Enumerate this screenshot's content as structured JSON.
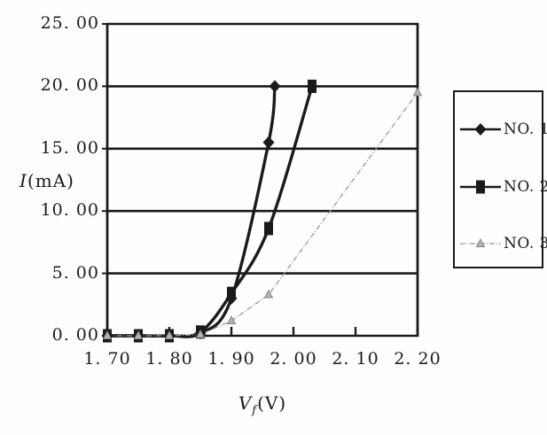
{
  "figure": {
    "background": "#fefefe",
    "ink_color": "#1a1a1a",
    "muted_color": "#999999"
  },
  "chart_data": {
    "type": "line",
    "xlabel": {
      "prefix": "V",
      "sub": "f",
      "suffix": "(V)"
    },
    "ylabel": {
      "prefix": "I",
      "suffix": "(mA)"
    },
    "xlim": [
      1.7,
      2.2
    ],
    "ylim": [
      0,
      25
    ],
    "x_tick_values": [
      1.7,
      1.8,
      1.9,
      2.0,
      2.1,
      2.2
    ],
    "x_tick_labels": [
      "1. 70",
      "1. 80",
      "1. 90",
      "2. 00",
      "2. 10",
      "2. 20"
    ],
    "y_tick_values": [
      25,
      20,
      15,
      10,
      5,
      0
    ],
    "y_tick_labels": [
      "25. 00",
      "20. 00",
      "15. 00",
      "10. 00",
      "5. 00",
      "0. 00"
    ],
    "grid": "horizontal",
    "legend_position": "right",
    "series": [
      {
        "name": "NO. 1",
        "marker": "diamond",
        "line": "solid",
        "color": "#1a1a1a",
        "points": [
          [
            1.7,
            0
          ],
          [
            1.75,
            0
          ],
          [
            1.8,
            0
          ],
          [
            1.85,
            0.2
          ],
          [
            1.9,
            3.0
          ],
          [
            1.96,
            15.5
          ],
          [
            1.97,
            20.0
          ]
        ]
      },
      {
        "name": "NO. 2",
        "marker": "square",
        "line": "solid",
        "color": "#1a1a1a",
        "points": [
          [
            1.7,
            0
          ],
          [
            1.75,
            0
          ],
          [
            1.8,
            0
          ],
          [
            1.85,
            0.3
          ],
          [
            1.9,
            3.4
          ],
          [
            1.96,
            8.6
          ],
          [
            2.03,
            20.0
          ]
        ]
      },
      {
        "name": "NO. 3",
        "marker": "triangle",
        "line": "dash-dot",
        "color": "#999999",
        "points": [
          [
            1.7,
            0
          ],
          [
            1.75,
            0
          ],
          [
            1.8,
            0
          ],
          [
            1.85,
            0.1
          ],
          [
            1.9,
            1.2
          ],
          [
            1.96,
            3.3
          ],
          [
            2.2,
            19.5
          ]
        ]
      }
    ]
  }
}
